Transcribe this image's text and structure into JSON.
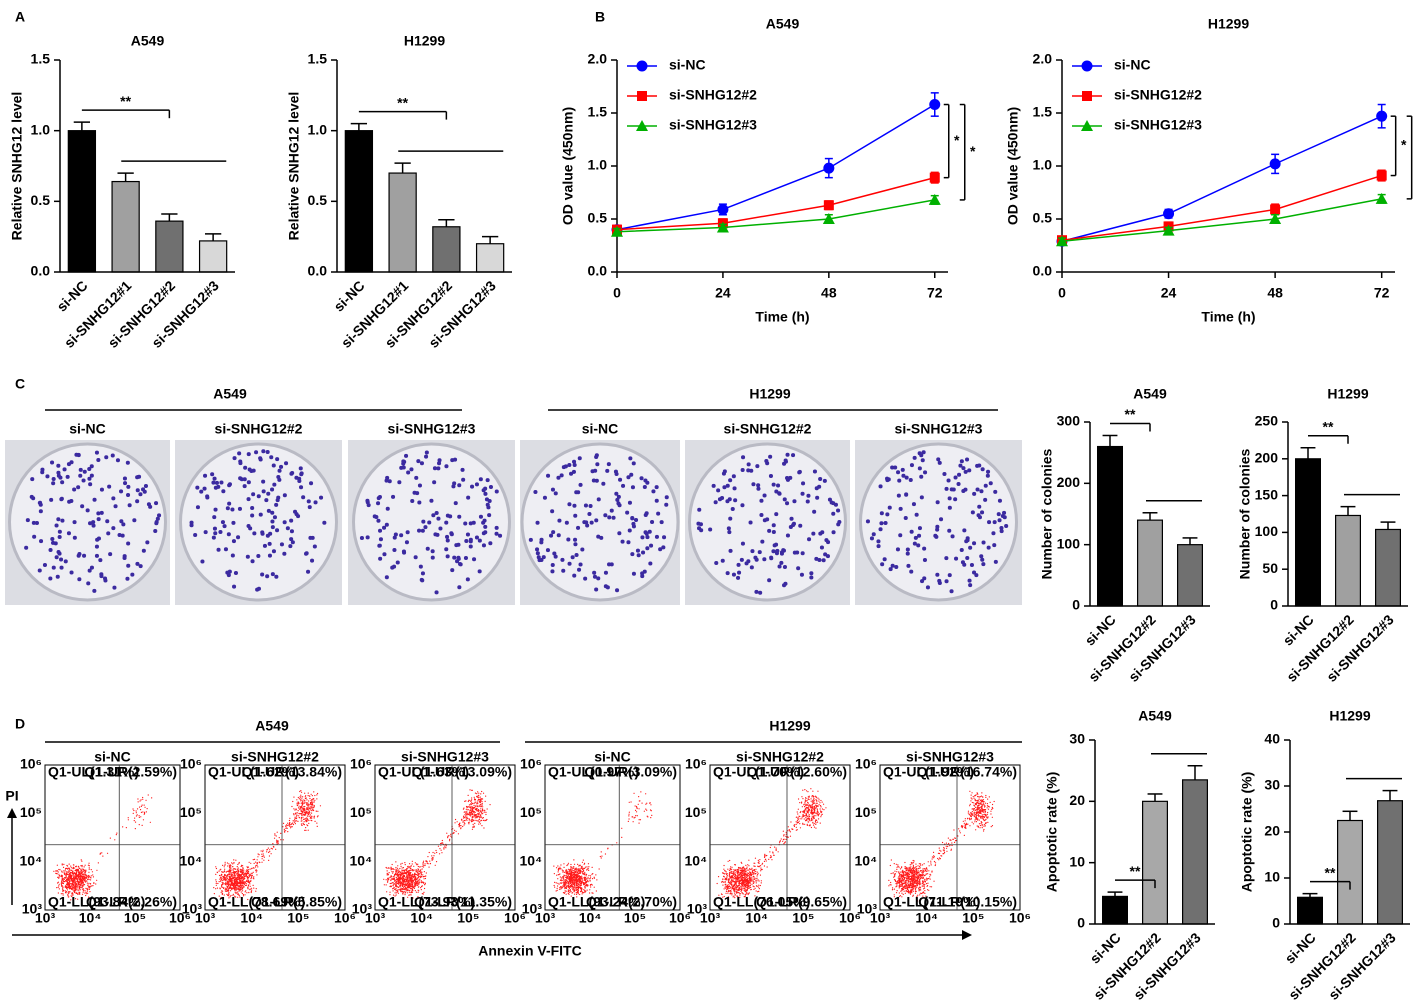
{
  "panel_labels": [
    "A",
    "B",
    "C",
    "D"
  ],
  "chart_data": [
    {
      "type": "bar",
      "title": "A549",
      "y_label": "Relative SNHG12 level",
      "categories": [
        "si-NC",
        "si-SNHG12#1",
        "si-SNHG12#2",
        "si-SNHG12#3"
      ],
      "values": [
        1.0,
        0.64,
        0.36,
        0.22
      ],
      "errors": [
        0.06,
        0.06,
        0.05,
        0.05
      ],
      "colors": [
        "#000000",
        "#a0a0a0",
        "#707070",
        "#d8d8d8"
      ],
      "ylim": [
        0,
        1.5
      ],
      "yticks": [
        {
          "value": 0,
          "label": "0.0"
        },
        0.5,
        {
          "value": 1,
          "label": "1.0"
        },
        1.5
      ],
      "annotations": [
        "**"
      ]
    },
    {
      "type": "bar",
      "title": "H1299",
      "y_label": "Relative SNHG12 level",
      "categories": [
        "si-NC",
        "si-SNHG12#1",
        "si-SNHG12#2",
        "si-SNHG12#3"
      ],
      "values": [
        1.0,
        0.7,
        0.32,
        0.2
      ],
      "errors": [
        0.05,
        0.07,
        0.05,
        0.05
      ],
      "colors": [
        "#000000",
        "#a0a0a0",
        "#707070",
        "#d8d8d8"
      ],
      "ylim": [
        0,
        1.5
      ],
      "yticks": [
        {
          "value": 0,
          "label": "0.0"
        },
        0.5,
        {
          "value": 1,
          "label": "1.0"
        },
        1.5
      ],
      "annotations": [
        "**"
      ]
    },
    {
      "type": "line",
      "title": "A549",
      "x_label": "Time (h)",
      "y_label": "OD value (450nm)",
      "x": [
        0,
        24,
        48,
        72
      ],
      "xlim": [
        0,
        75
      ],
      "xticks": [
        0,
        24,
        48,
        72
      ],
      "ylim": [
        0,
        2
      ],
      "yticks": [
        {
          "value": 0,
          "label": "0.0"
        },
        0.5,
        {
          "value": 1,
          "label": "1.0"
        },
        1.5,
        {
          "value": 2,
          "label": "2.0"
        }
      ],
      "legend": "upper left",
      "series": [
        {
          "name": "si-NC",
          "color": "#0000ff",
          "marker": "circle",
          "values": [
            0.4,
            0.59,
            0.98,
            1.58
          ],
          "errors": [
            0.04,
            0.05,
            0.09,
            0.11
          ]
        },
        {
          "name": "si-SNHG12#2",
          "color": "#ff0000",
          "marker": "square",
          "values": [
            0.4,
            0.46,
            0.63,
            0.89
          ],
          "errors": [
            0.03,
            0.04,
            0.04,
            0.05
          ]
        },
        {
          "name": "si-SNHG12#3",
          "color": "#00b000",
          "marker": "triangle",
          "values": [
            0.38,
            0.42,
            0.5,
            0.68
          ],
          "errors": [
            0.03,
            0.03,
            0.04,
            0.04
          ]
        }
      ],
      "annotations": [
        "*",
        "*"
      ]
    },
    {
      "type": "line",
      "title": "H1299",
      "x_label": "Time (h)",
      "y_label": "OD value (450nm)",
      "x": [
        0,
        24,
        48,
        72
      ],
      "xlim": [
        0,
        75
      ],
      "xticks": [
        0,
        24,
        48,
        72
      ],
      "ylim": [
        0,
        2
      ],
      "yticks": [
        {
          "value": 0,
          "label": "0.0"
        },
        0.5,
        {
          "value": 1,
          "label": "1.0"
        },
        1.5,
        {
          "value": 2,
          "label": "2.0"
        }
      ],
      "legend": "upper left",
      "series": [
        {
          "name": "si-NC",
          "color": "#0000ff",
          "marker": "circle",
          "values": [
            0.29,
            0.55,
            1.02,
            1.47
          ],
          "errors": [
            0.03,
            0.04,
            0.09,
            0.11
          ]
        },
        {
          "name": "si-SNHG12#2",
          "color": "#ff0000",
          "marker": "square",
          "values": [
            0.3,
            0.43,
            0.59,
            0.91
          ],
          "errors": [
            0.03,
            0.04,
            0.05,
            0.05
          ]
        },
        {
          "name": "si-SNHG12#3",
          "color": "#00b000",
          "marker": "triangle",
          "values": [
            0.29,
            0.39,
            0.5,
            0.69
          ],
          "errors": [
            0.03,
            0.03,
            0.04,
            0.04
          ]
        }
      ],
      "annotations": [
        "*",
        "*"
      ]
    },
    {
      "type": "bar",
      "title": "A549",
      "y_label": "Number of colonies",
      "categories": [
        "si-NC",
        "si-SNHG12#2",
        "si-SNHG12#3"
      ],
      "values": [
        260,
        140,
        100
      ],
      "errors": [
        18,
        12,
        11
      ],
      "colors": [
        "#000000",
        "#a0a0a0",
        "#707070"
      ],
      "ylim": [
        0,
        300
      ],
      "yticks": [
        0,
        100,
        200,
        300
      ],
      "annotations": [
        "**"
      ]
    },
    {
      "type": "bar",
      "title": "H1299",
      "y_label": "Number of colonies",
      "categories": [
        "si-NC",
        "si-SNHG12#2",
        "si-SNHG12#3"
      ],
      "values": [
        200,
        123,
        104
      ],
      "errors": [
        15,
        12,
        10
      ],
      "colors": [
        "#000000",
        "#a0a0a0",
        "#707070"
      ],
      "ylim": [
        0,
        250
      ],
      "yticks": [
        0,
        50,
        100,
        150,
        200,
        250
      ],
      "annotations": [
        "**"
      ]
    },
    {
      "type": "bar",
      "title": "A549",
      "y_label": "Apoptotic rate (%)",
      "categories": [
        "si-NC",
        "si-SNHG12#2",
        "si-SNHG12#3"
      ],
      "values": [
        4.5,
        20,
        23.5
      ],
      "errors": [
        0.7,
        1.2,
        2.3
      ],
      "colors": [
        "#000000",
        "#a8a8a8",
        "#707070"
      ],
      "ylim": [
        0,
        30
      ],
      "yticks": [
        0,
        10,
        20,
        30
      ],
      "annotations": [
        "**"
      ]
    },
    {
      "type": "bar",
      "title": "H1299",
      "y_label": "Apoptotic rate (%)",
      "categories": [
        "si-NC",
        "si-SNHG12#2",
        "si-SNHG12#3"
      ],
      "values": [
        5.8,
        22.5,
        26.8
      ],
      "errors": [
        0.8,
        2.0,
        2.2
      ],
      "colors": [
        "#000000",
        "#a8a8a8",
        "#707070"
      ],
      "ylim": [
        0,
        40
      ],
      "yticks": [
        0,
        10,
        20,
        30,
        40
      ],
      "annotations": [
        "**"
      ]
    }
  ],
  "colony": {
    "groups": [
      {
        "title": "A549",
        "samples": [
          "si-NC",
          "si-SNHG12#2",
          "si-SNHG12#3"
        ]
      },
      {
        "title": "H1299",
        "samples": [
          "si-NC",
          "si-SNHG12#2",
          "si-SNHG12#3"
        ]
      }
    ]
  },
  "flow": {
    "y_label": "PI",
    "x_label": "Annexin V-FITC",
    "ticks": [
      "10³",
      "10⁴",
      "10⁵",
      "10⁶"
    ],
    "groups": [
      {
        "title": "A549",
        "samples": [
          {
            "title": "si-NC",
            "quadrants": [
              "Q1-UL(1.31%)",
              "Q1-UR(2.59%)",
              "Q1-LL(93.84%)",
              "Q1-LR(2.26%)"
            ]
          },
          {
            "title": "si-SNHG12#2",
            "quadrants": [
              "Q1-UL(1.62%)",
              "Q1-UR(13.84%)",
              "Q1-LL(78.69%)",
              "Q1-LR(5.85%)"
            ]
          },
          {
            "title": "si-SNHG12#3",
            "quadrants": [
              "Q1-UL(1.63%)",
              "Q1-UR(13.09%)",
              "Q1-LL(73.93%)",
              "Q1-LR(11.35%)"
            ]
          }
        ]
      },
      {
        "title": "H1299",
        "samples": [
          {
            "title": "si-NC",
            "quadrants": [
              "Q1-UL(0.97%)",
              "Q1-UR(3.09%)",
              "Q1-LL(93.24%)",
              "Q1-LR(2.70%)"
            ]
          },
          {
            "title": "si-SNHG12#2",
            "quadrants": [
              "Q1-UL(1.70%)",
              "Q1-UR(12.60%)",
              "Q1-LL(76.05%)",
              "Q1-LR(9.65%)"
            ]
          },
          {
            "title": "si-SNHG12#3",
            "quadrants": [
              "Q1-UL(1.92%)",
              "Q1-UR(16.74%)",
              "Q1-LL(71.19%)",
              "Q1-LR(10.15%)"
            ]
          }
        ]
      }
    ]
  }
}
